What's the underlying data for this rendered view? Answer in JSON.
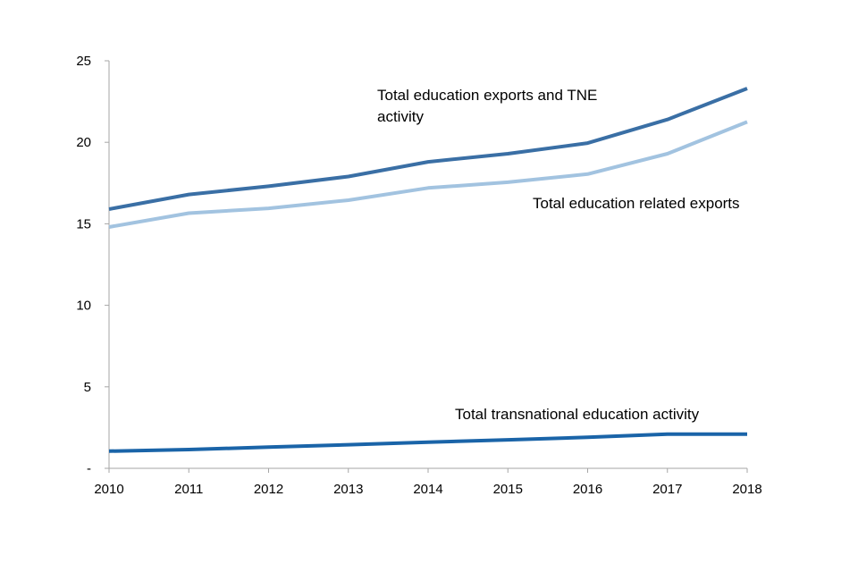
{
  "chart_data": {
    "type": "line",
    "title": "",
    "xlabel": "",
    "ylabel": "",
    "x": [
      "2010",
      "2011",
      "2012",
      "2013",
      "2014",
      "2015",
      "2016",
      "2017",
      "2018"
    ],
    "ylim": [
      0,
      25
    ],
    "yticks": [
      {
        "value": 0,
        "label": "-"
      },
      {
        "value": 5,
        "label": "5"
      },
      {
        "value": 10,
        "label": "10"
      },
      {
        "value": 15,
        "label": "15"
      },
      {
        "value": 20,
        "label": "20"
      },
      {
        "value": 25,
        "label": "25"
      }
    ],
    "grid": false,
    "series": [
      {
        "name": "Total education exports and TNE activity",
        "label_lines": [
          "Total education exports and TNE",
          "activity"
        ],
        "color": "#3a6fa5",
        "values": [
          15.9,
          16.8,
          17.3,
          17.9,
          18.8,
          19.3,
          19.95,
          21.4,
          23.3
        ]
      },
      {
        "name": "Total education related exports",
        "label_lines": [
          "Total education related exports"
        ],
        "color": "#a2c3e0",
        "values": [
          14.8,
          15.65,
          15.95,
          16.45,
          17.2,
          17.55,
          18.05,
          19.3,
          21.25
        ]
      },
      {
        "name": "Total transnational education activity",
        "label_lines": [
          "Total transnational education activity"
        ],
        "color": "#1a64a8",
        "values": [
          1.05,
          1.15,
          1.3,
          1.45,
          1.6,
          1.75,
          1.9,
          2.1,
          2.1
        ]
      }
    ]
  }
}
